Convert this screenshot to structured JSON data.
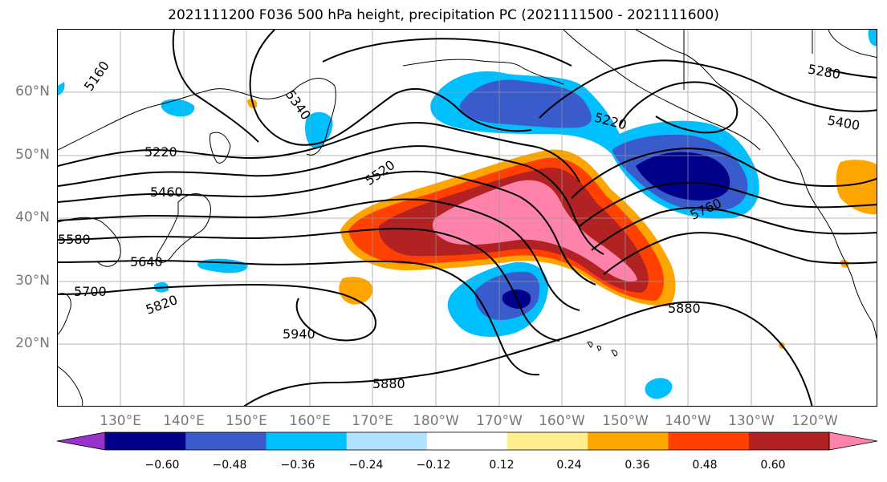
{
  "title": "2021111200 F036 500 hPa height, precipitation PC (2021111500 - 2021111600)",
  "lat_labels": [
    "60°N",
    "50°N",
    "40°N",
    "30°N",
    "20°N"
  ],
  "lon_labels": [
    "130°E",
    "140°E",
    "150°E",
    "160°E",
    "170°E",
    "180°W",
    "170°W",
    "160°W",
    "150°W",
    "140°W",
    "130°W",
    "120°W"
  ],
  "contour_labels": [
    "5160",
    "5340",
    "5220",
    "5460",
    "5520",
    "5580",
    "5640",
    "5700",
    "5820",
    "5940",
    "5880",
    "5880",
    "5220",
    "5280",
    "5400",
    "5760"
  ],
  "colorbar": {
    "ticks": [
      "−0.60",
      "−0.48",
      "−0.36",
      "−0.24",
      "−0.12",
      "0.12",
      "0.24",
      "0.36",
      "0.48",
      "0.60"
    ],
    "colors": [
      "#9932cc",
      "#00008b",
      "#3a5bcc",
      "#00bfff",
      "#b0e2ff",
      "#ffffff",
      "#ffec8b",
      "#ffa500",
      "#ff4000",
      "#b22222",
      "#ff82ab"
    ]
  }
}
